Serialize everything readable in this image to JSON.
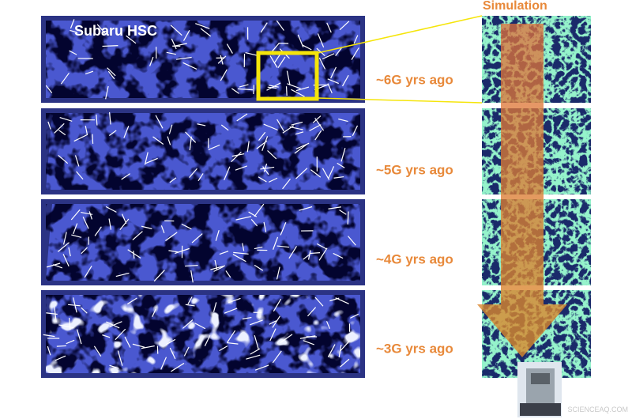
{
  "survey_label": "Subaru HSC",
  "simulation_label": "Simulation",
  "epochs": [
    "~6G yrs ago",
    "~5G yrs ago",
    "~4G yrs ago",
    "~3G yrs ago"
  ],
  "watermark": "SCIENCEAQ.COM"
}
